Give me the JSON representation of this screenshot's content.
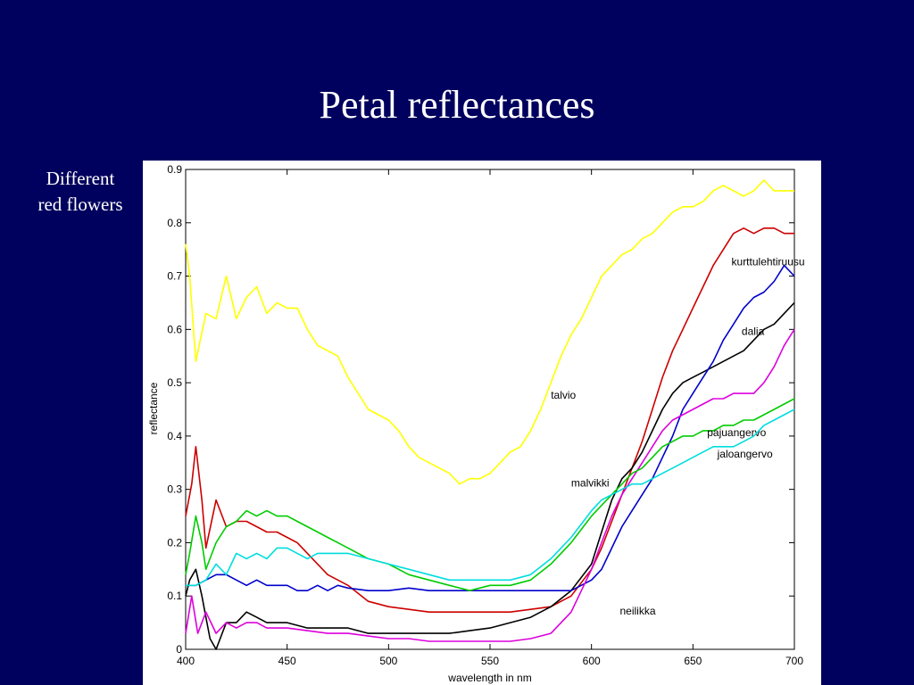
{
  "slide": {
    "title": "Petal reflectances",
    "caption_line1": "Different",
    "caption_line2": "red flowers"
  },
  "colors": {
    "background": "#00005e",
    "title": "#ffffff"
  },
  "chart_data": {
    "type": "line",
    "title": "",
    "xlabel": "wavelength in nm",
    "ylabel": "reflectance",
    "xlim": [
      400,
      700
    ],
    "ylim": [
      0,
      0.9
    ],
    "xticks": [
      400,
      450,
      500,
      550,
      600,
      650,
      700
    ],
    "yticks": [
      0,
      0.1,
      0.2,
      0.3,
      0.4,
      0.5,
      0.6,
      0.7,
      0.8,
      0.9
    ],
    "xtick_labels": [
      "400",
      "450",
      "500",
      "550",
      "600",
      "650",
      "700"
    ],
    "ytick_labels": [
      "0",
      "0.1",
      "0.2",
      "0.3",
      "0.4",
      "0.5",
      "0.6",
      "0.7",
      "0.8",
      "0.9"
    ],
    "grid": false,
    "series": [
      {
        "name": "talvio",
        "color": "#ffff00",
        "label_at": [
          580,
          0.47
        ],
        "x": [
          400,
          402,
          405,
          410,
          415,
          420,
          425,
          430,
          435,
          440,
          445,
          450,
          455,
          460,
          465,
          470,
          475,
          480,
          490,
          500,
          505,
          510,
          515,
          520,
          530,
          535,
          540,
          545,
          550,
          555,
          560,
          565,
          570,
          575,
          580,
          585,
          590,
          595,
          600,
          605,
          610,
          615,
          620,
          625,
          630,
          635,
          640,
          645,
          650,
          655,
          660,
          665,
          670,
          675,
          680,
          685,
          690,
          695,
          700
        ],
        "y": [
          0.76,
          0.7,
          0.54,
          0.63,
          0.62,
          0.7,
          0.62,
          0.66,
          0.68,
          0.63,
          0.65,
          0.64,
          0.64,
          0.6,
          0.57,
          0.56,
          0.55,
          0.51,
          0.45,
          0.43,
          0.41,
          0.38,
          0.36,
          0.35,
          0.33,
          0.31,
          0.32,
          0.32,
          0.33,
          0.35,
          0.37,
          0.38,
          0.41,
          0.45,
          0.5,
          0.55,
          0.59,
          0.62,
          0.66,
          0.7,
          0.72,
          0.74,
          0.75,
          0.77,
          0.78,
          0.8,
          0.82,
          0.83,
          0.83,
          0.84,
          0.86,
          0.87,
          0.86,
          0.85,
          0.86,
          0.88,
          0.86,
          0.86,
          0.86
        ]
      },
      {
        "name": "kurttulehtiruusu",
        "color": "#cc0000",
        "label_at": [
          669,
          0.72
        ],
        "x": [
          400,
          403,
          405,
          408,
          410,
          415,
          420,
          425,
          430,
          435,
          440,
          445,
          450,
          455,
          460,
          465,
          470,
          480,
          490,
          500,
          510,
          520,
          530,
          540,
          550,
          560,
          570,
          580,
          590,
          600,
          605,
          610,
          615,
          620,
          625,
          630,
          635,
          640,
          645,
          650,
          655,
          660,
          665,
          670,
          675,
          680,
          685,
          690,
          695,
          700
        ],
        "y": [
          0.25,
          0.31,
          0.38,
          0.28,
          0.19,
          0.28,
          0.23,
          0.24,
          0.24,
          0.23,
          0.22,
          0.22,
          0.21,
          0.2,
          0.18,
          0.16,
          0.14,
          0.12,
          0.09,
          0.08,
          0.075,
          0.07,
          0.07,
          0.07,
          0.07,
          0.07,
          0.075,
          0.08,
          0.1,
          0.15,
          0.19,
          0.24,
          0.29,
          0.34,
          0.39,
          0.45,
          0.51,
          0.56,
          0.6,
          0.64,
          0.68,
          0.72,
          0.75,
          0.78,
          0.79,
          0.78,
          0.79,
          0.79,
          0.78,
          0.78
        ]
      },
      {
        "name": "dalia",
        "color": "#000000",
        "label_at": [
          674,
          0.59
        ],
        "x": [
          400,
          402,
          405,
          408,
          410,
          412,
          415,
          418,
          420,
          425,
          430,
          435,
          440,
          445,
          450,
          460,
          470,
          480,
          490,
          500,
          510,
          520,
          530,
          540,
          550,
          560,
          570,
          580,
          590,
          600,
          605,
          610,
          615,
          620,
          625,
          630,
          635,
          640,
          645,
          650,
          655,
          660,
          665,
          670,
          675,
          680,
          685,
          690,
          695,
          700
        ],
        "y": [
          0.1,
          0.13,
          0.15,
          0.1,
          0.06,
          0.02,
          0.0,
          0.03,
          0.05,
          0.05,
          0.07,
          0.06,
          0.05,
          0.05,
          0.05,
          0.04,
          0.04,
          0.04,
          0.03,
          0.03,
          0.03,
          0.03,
          0.03,
          0.035,
          0.04,
          0.05,
          0.06,
          0.08,
          0.11,
          0.16,
          0.22,
          0.28,
          0.32,
          0.34,
          0.37,
          0.41,
          0.45,
          0.48,
          0.5,
          0.51,
          0.52,
          0.53,
          0.54,
          0.55,
          0.56,
          0.58,
          0.6,
          0.61,
          0.63,
          0.65
        ]
      },
      {
        "name": "malvikki",
        "color": "#0000cc",
        "label_at": [
          590,
          0.305
        ],
        "x": [
          400,
          405,
          410,
          415,
          420,
          425,
          430,
          435,
          440,
          445,
          450,
          455,
          460,
          465,
          470,
          475,
          480,
          490,
          500,
          510,
          520,
          530,
          540,
          550,
          560,
          570,
          580,
          590,
          600,
          605,
          610,
          615,
          620,
          625,
          630,
          635,
          640,
          645,
          650,
          655,
          660,
          665,
          670,
          675,
          680,
          685,
          690,
          695,
          700
        ],
        "y": [
          0.12,
          0.12,
          0.13,
          0.14,
          0.14,
          0.13,
          0.12,
          0.13,
          0.12,
          0.12,
          0.12,
          0.11,
          0.11,
          0.12,
          0.11,
          0.12,
          0.115,
          0.11,
          0.11,
          0.115,
          0.11,
          0.11,
          0.11,
          0.11,
          0.11,
          0.11,
          0.11,
          0.11,
          0.13,
          0.15,
          0.19,
          0.23,
          0.26,
          0.29,
          0.32,
          0.36,
          0.4,
          0.45,
          0.48,
          0.51,
          0.54,
          0.58,
          0.61,
          0.64,
          0.66,
          0.67,
          0.69,
          0.72,
          0.7
        ]
      },
      {
        "name": "neilikka",
        "color": "#dd00dd",
        "label_at": [
          614,
          0.065
        ],
        "x": [
          400,
          403,
          406,
          410,
          415,
          420,
          425,
          430,
          435,
          440,
          450,
          460,
          470,
          480,
          490,
          500,
          510,
          520,
          530,
          540,
          550,
          560,
          570,
          580,
          590,
          600,
          605,
          610,
          615,
          620,
          625,
          630,
          635,
          640,
          645,
          650,
          655,
          660,
          665,
          670,
          675,
          680,
          685,
          690,
          695,
          700
        ],
        "y": [
          0.03,
          0.1,
          0.03,
          0.07,
          0.03,
          0.05,
          0.04,
          0.05,
          0.05,
          0.04,
          0.04,
          0.035,
          0.03,
          0.03,
          0.025,
          0.02,
          0.02,
          0.015,
          0.015,
          0.015,
          0.015,
          0.015,
          0.02,
          0.03,
          0.07,
          0.15,
          0.2,
          0.25,
          0.29,
          0.32,
          0.35,
          0.38,
          0.41,
          0.43,
          0.44,
          0.45,
          0.46,
          0.47,
          0.47,
          0.48,
          0.48,
          0.48,
          0.5,
          0.53,
          0.57,
          0.6
        ]
      },
      {
        "name": "pajuangervo",
        "color": "#00cc00",
        "label_at": [
          657,
          0.4
        ],
        "x": [
          400,
          402,
          405,
          408,
          410,
          415,
          420,
          425,
          430,
          435,
          440,
          445,
          450,
          455,
          460,
          465,
          470,
          480,
          490,
          500,
          510,
          520,
          530,
          540,
          550,
          560,
          570,
          580,
          590,
          600,
          605,
          610,
          615,
          620,
          625,
          630,
          635,
          640,
          645,
          650,
          655,
          660,
          665,
          670,
          675,
          680,
          685,
          690,
          695,
          700
        ],
        "y": [
          0.14,
          0.18,
          0.25,
          0.2,
          0.15,
          0.2,
          0.23,
          0.24,
          0.26,
          0.25,
          0.26,
          0.25,
          0.25,
          0.24,
          0.23,
          0.22,
          0.21,
          0.19,
          0.17,
          0.16,
          0.14,
          0.13,
          0.12,
          0.11,
          0.12,
          0.12,
          0.13,
          0.16,
          0.2,
          0.25,
          0.27,
          0.29,
          0.31,
          0.33,
          0.34,
          0.36,
          0.38,
          0.39,
          0.4,
          0.4,
          0.41,
          0.41,
          0.42,
          0.42,
          0.43,
          0.43,
          0.44,
          0.45,
          0.46,
          0.47
        ]
      },
      {
        "name": "jaloangervo",
        "color": "#00dddd",
        "label_at": [
          662,
          0.36
        ],
        "x": [
          400,
          405,
          410,
          415,
          420,
          425,
          430,
          435,
          440,
          445,
          450,
          455,
          460,
          465,
          470,
          480,
          490,
          500,
          510,
          520,
          530,
          540,
          550,
          560,
          570,
          580,
          590,
          600,
          605,
          610,
          615,
          620,
          625,
          630,
          635,
          640,
          645,
          650,
          655,
          660,
          665,
          670,
          675,
          680,
          685,
          690,
          695,
          700
        ],
        "y": [
          0.12,
          0.12,
          0.13,
          0.16,
          0.14,
          0.18,
          0.17,
          0.18,
          0.17,
          0.19,
          0.19,
          0.18,
          0.17,
          0.18,
          0.18,
          0.18,
          0.17,
          0.16,
          0.15,
          0.14,
          0.13,
          0.13,
          0.13,
          0.13,
          0.14,
          0.17,
          0.21,
          0.26,
          0.28,
          0.29,
          0.3,
          0.31,
          0.31,
          0.32,
          0.33,
          0.34,
          0.35,
          0.36,
          0.37,
          0.38,
          0.38,
          0.38,
          0.39,
          0.4,
          0.42,
          0.43,
          0.44,
          0.45
        ]
      }
    ]
  }
}
